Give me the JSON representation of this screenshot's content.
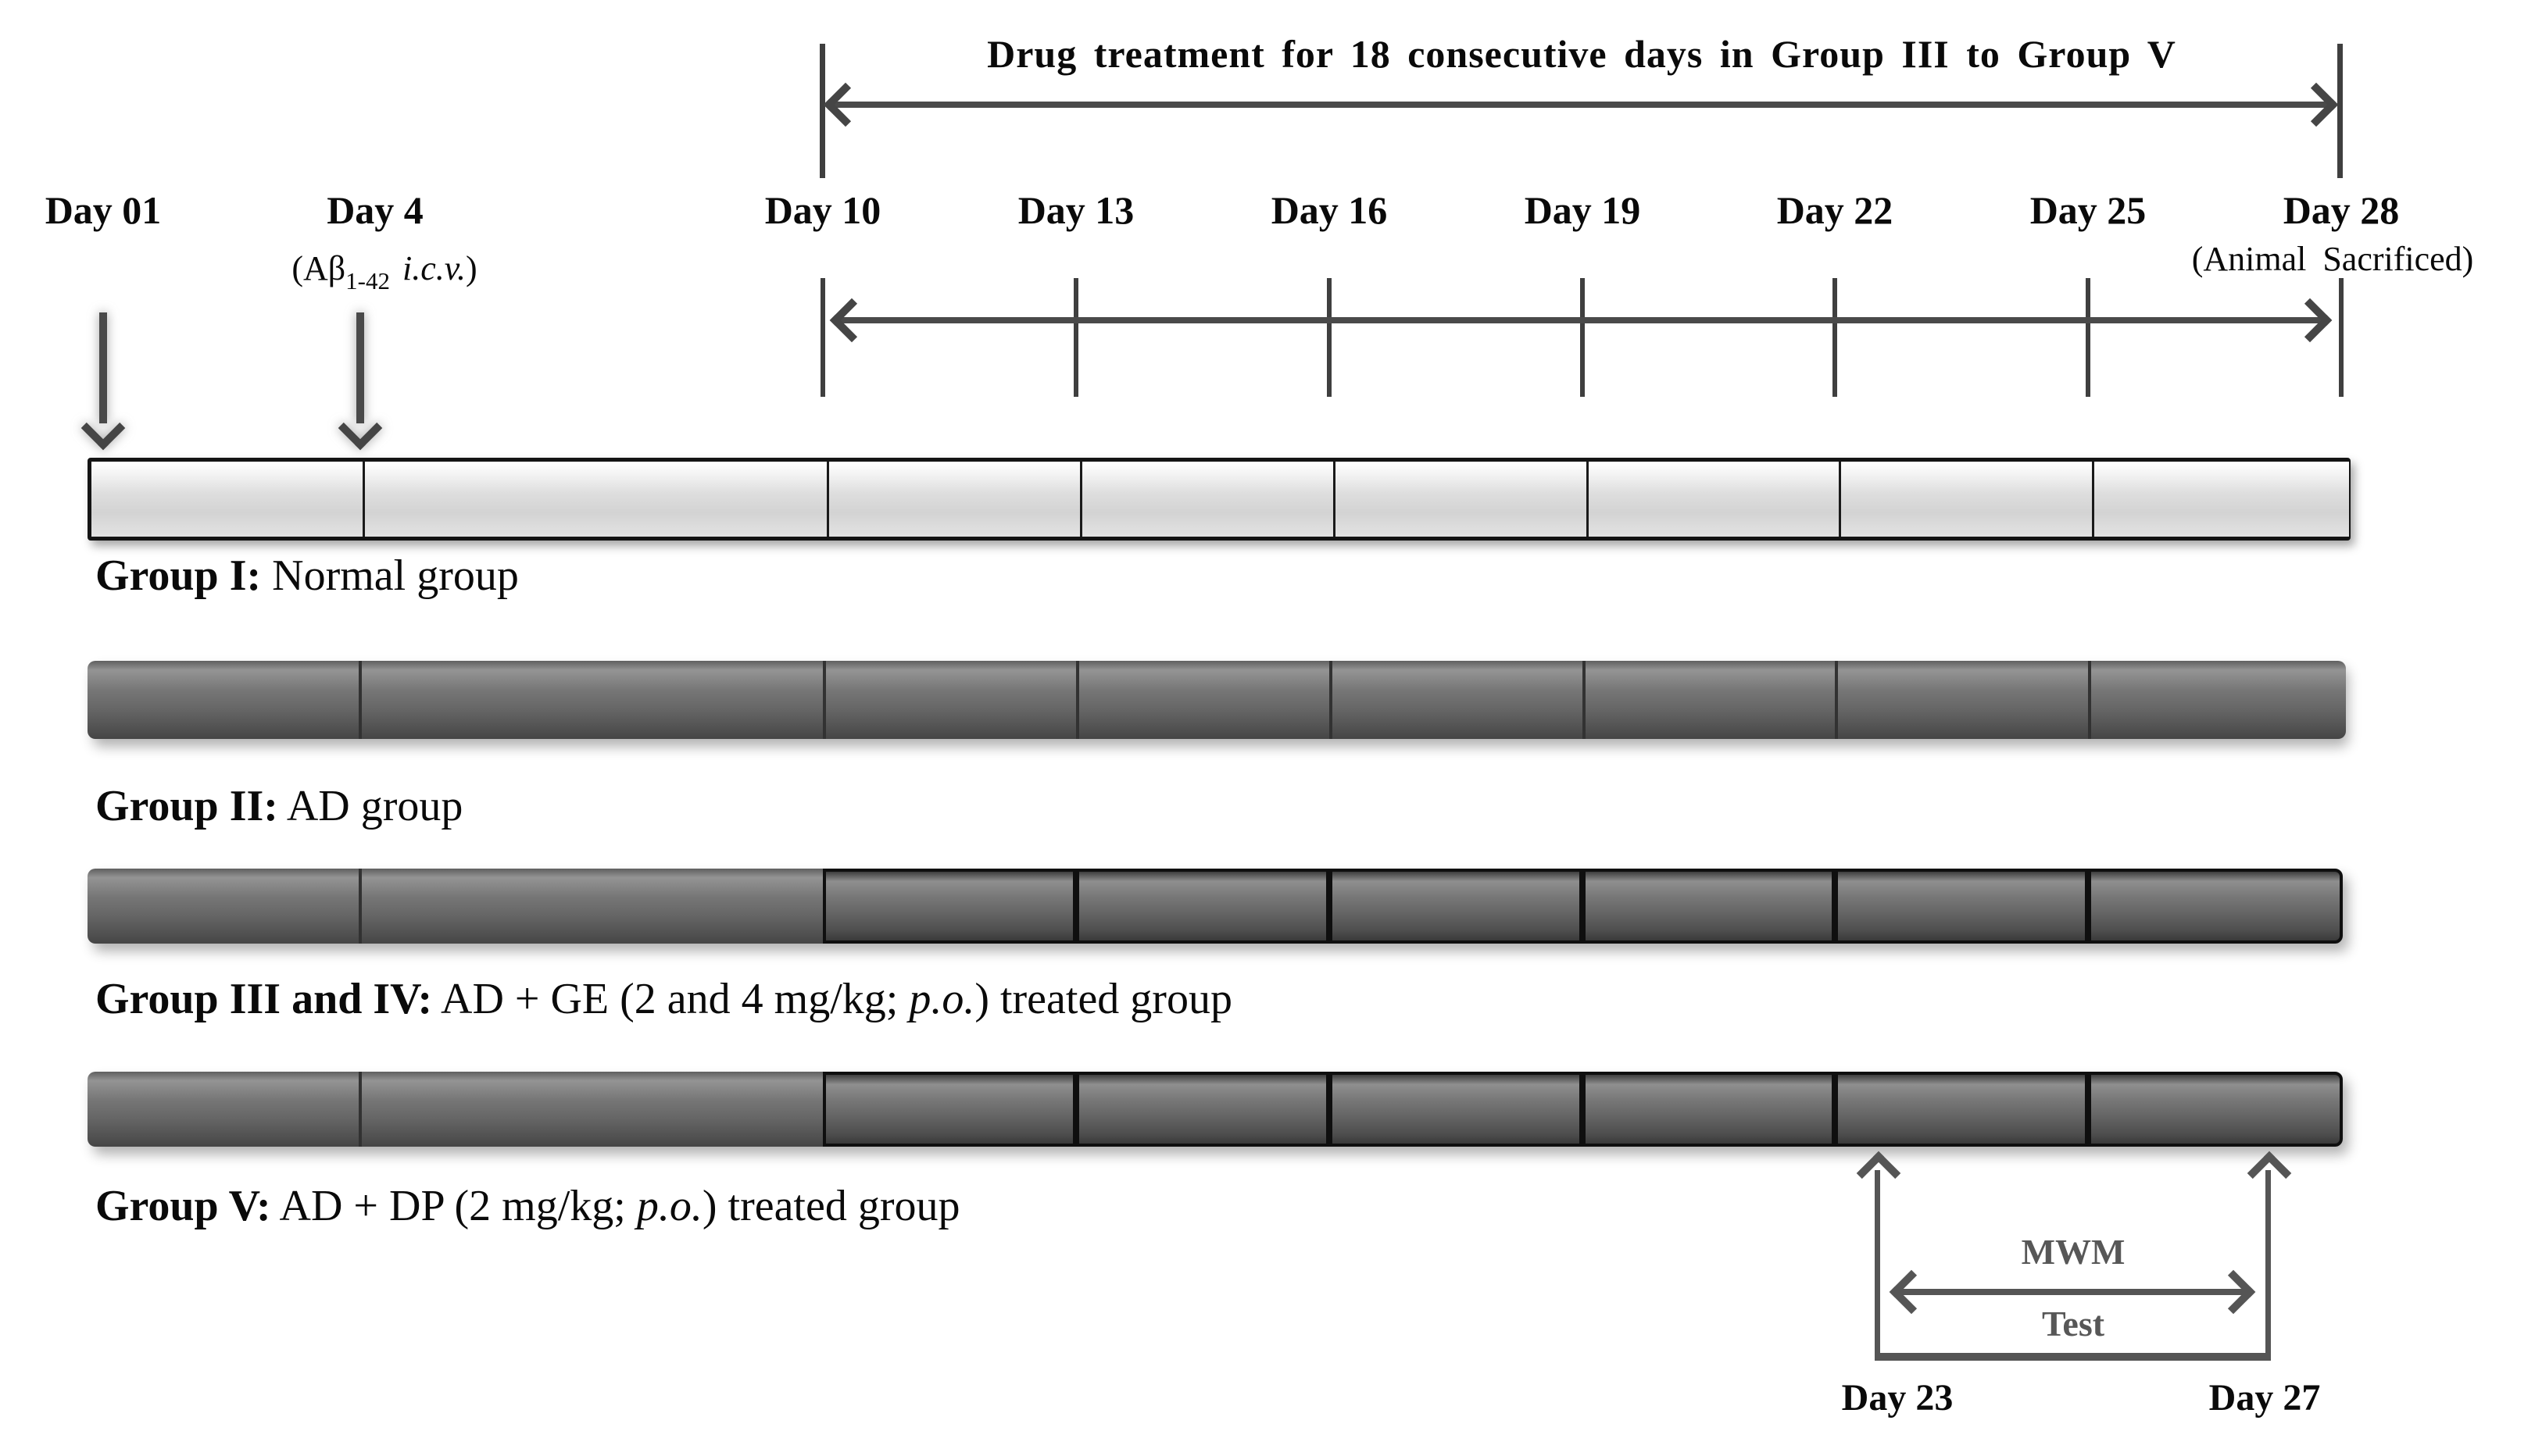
{
  "title": "Drug treatment for 18 consecutive days in Group III to Group V",
  "timeline": {
    "day_labels": [
      "Day 01",
      "Day 4",
      "Day 10",
      "Day 13",
      "Day 16",
      "Day 19",
      "Day 22",
      "Day 25",
      "Day 28"
    ],
    "day4_sub": {
      "prefix": "(Aβ",
      "sub": "1-42",
      "italic": "i.c.v.",
      "suffix": ")"
    },
    "day28_sub": "(Animal Sacrificed)"
  },
  "groups": [
    {
      "bold": "Group I:",
      "pre": " Normal group",
      "italic": "",
      "post": ""
    },
    {
      "bold": "Group II:",
      "pre": " AD group",
      "italic": "",
      "post": ""
    },
    {
      "bold": "Group III and IV:",
      "pre": " AD + GE (2 and 4 mg/kg; ",
      "italic": "p.o.",
      "post": ") treated group"
    },
    {
      "bold": "Group V:",
      "pre": " AD + DP (2 mg/kg; ",
      "italic": "p.o.",
      "post": ") treated group"
    }
  ],
  "mwm": {
    "line1": "MWM",
    "line2": "Test",
    "start_label": "Day 23",
    "end_label": "Day 27"
  },
  "colors": {
    "arrow_gray": "#4a4a4a",
    "text_black": "#0a0a0a",
    "mwm_gray": "#575757",
    "light_bar": "#dedede",
    "dark_bar": "#6a6a6a"
  }
}
